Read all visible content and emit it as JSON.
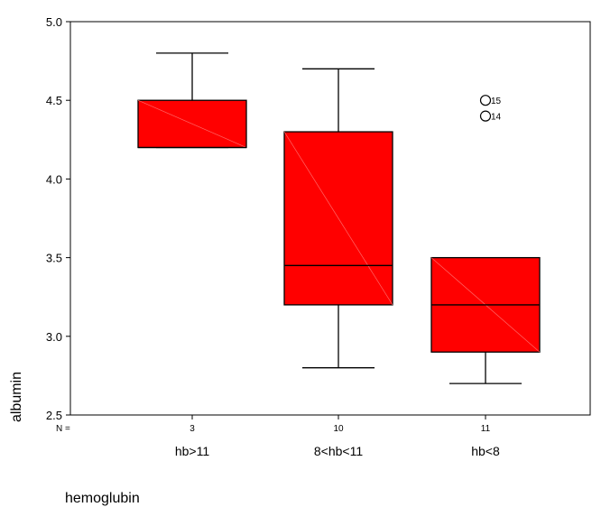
{
  "chart_data": {
    "type": "boxplot",
    "title": "",
    "xlabel": "hemoglubin",
    "ylabel": "albumin",
    "ylim": [
      2.5,
      5.0
    ],
    "yticks": [
      "2.5",
      "3.0",
      "3.5",
      "4.0",
      "4.5",
      "5.0"
    ],
    "n_label": "N =",
    "box_color": "#ff0000",
    "categories": [
      {
        "label": "hb>11",
        "n": "3",
        "min": 4.2,
        "q1": 4.2,
        "median": 4.2,
        "q3": 4.5,
        "max": 4.8,
        "outliers": []
      },
      {
        "label": "8<hb<11",
        "n": "10",
        "min": 2.8,
        "q1": 3.2,
        "median": 3.45,
        "q3": 4.3,
        "max": 4.7,
        "outliers": []
      },
      {
        "label": "hb<8",
        "n": "11",
        "min": 2.7,
        "q1": 2.9,
        "median": 3.2,
        "q3": 3.5,
        "max": 3.5,
        "outliers": [
          {
            "value": 4.5,
            "label": "15"
          },
          {
            "value": 4.4,
            "label": "14"
          }
        ]
      }
    ]
  }
}
